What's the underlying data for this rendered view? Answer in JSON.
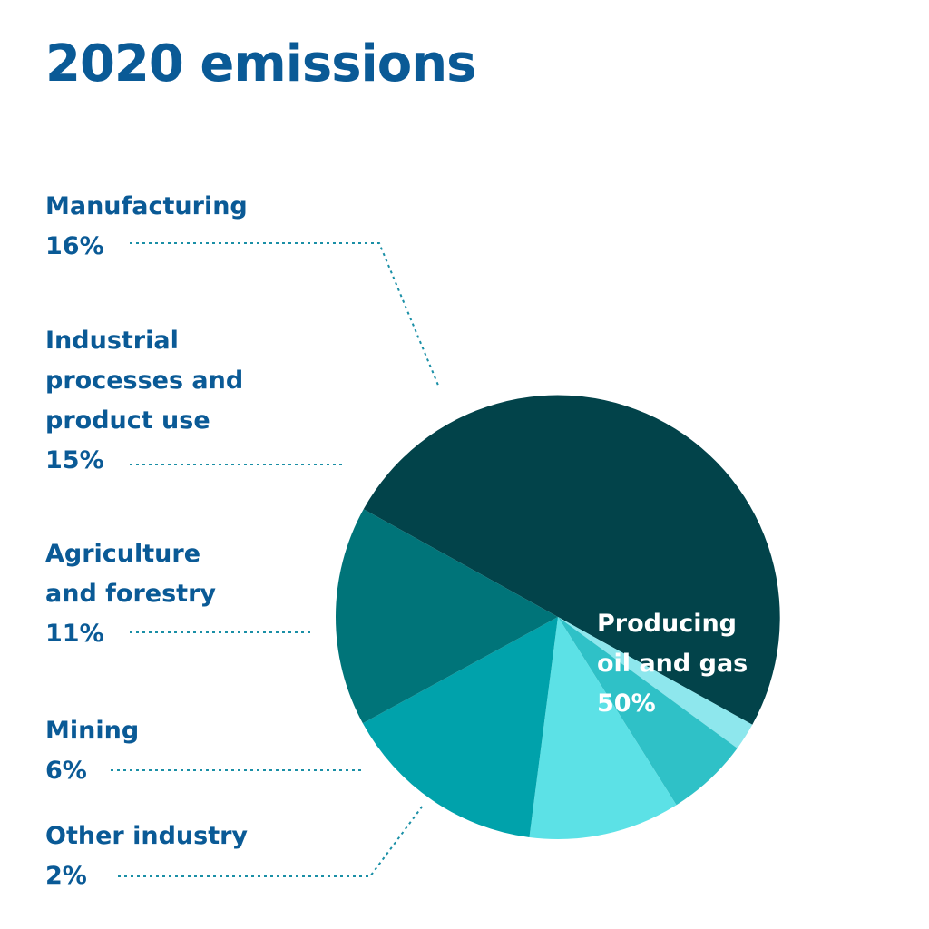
{
  "chart_data": {
    "type": "pie",
    "title": "2020 emissions",
    "start_angle_deg": -61,
    "direction": "clockwise",
    "slices": [
      {
        "name": "Producing\noil and gas",
        "value": 50,
        "value_label": "50%",
        "color": "#02434a"
      },
      {
        "name": "Other industry",
        "value": 2,
        "value_label": "2%",
        "color": "#8ee7ed"
      },
      {
        "name": "Mining",
        "value": 6,
        "value_label": "6%",
        "color": "#2fc1c7"
      },
      {
        "name": "Agriculture\nand forestry",
        "value": 11,
        "value_label": "11%",
        "color": "#5ce1e6"
      },
      {
        "name": "Industrial\nprocesses and\nproduct use",
        "value": 15,
        "value_label": "15%",
        "color": "#00a2ab"
      },
      {
        "name": "Manufacturing",
        "value": 16,
        "value_label": "16%",
        "color": "#007479"
      }
    ],
    "leader_color": "#1a8fa6"
  }
}
